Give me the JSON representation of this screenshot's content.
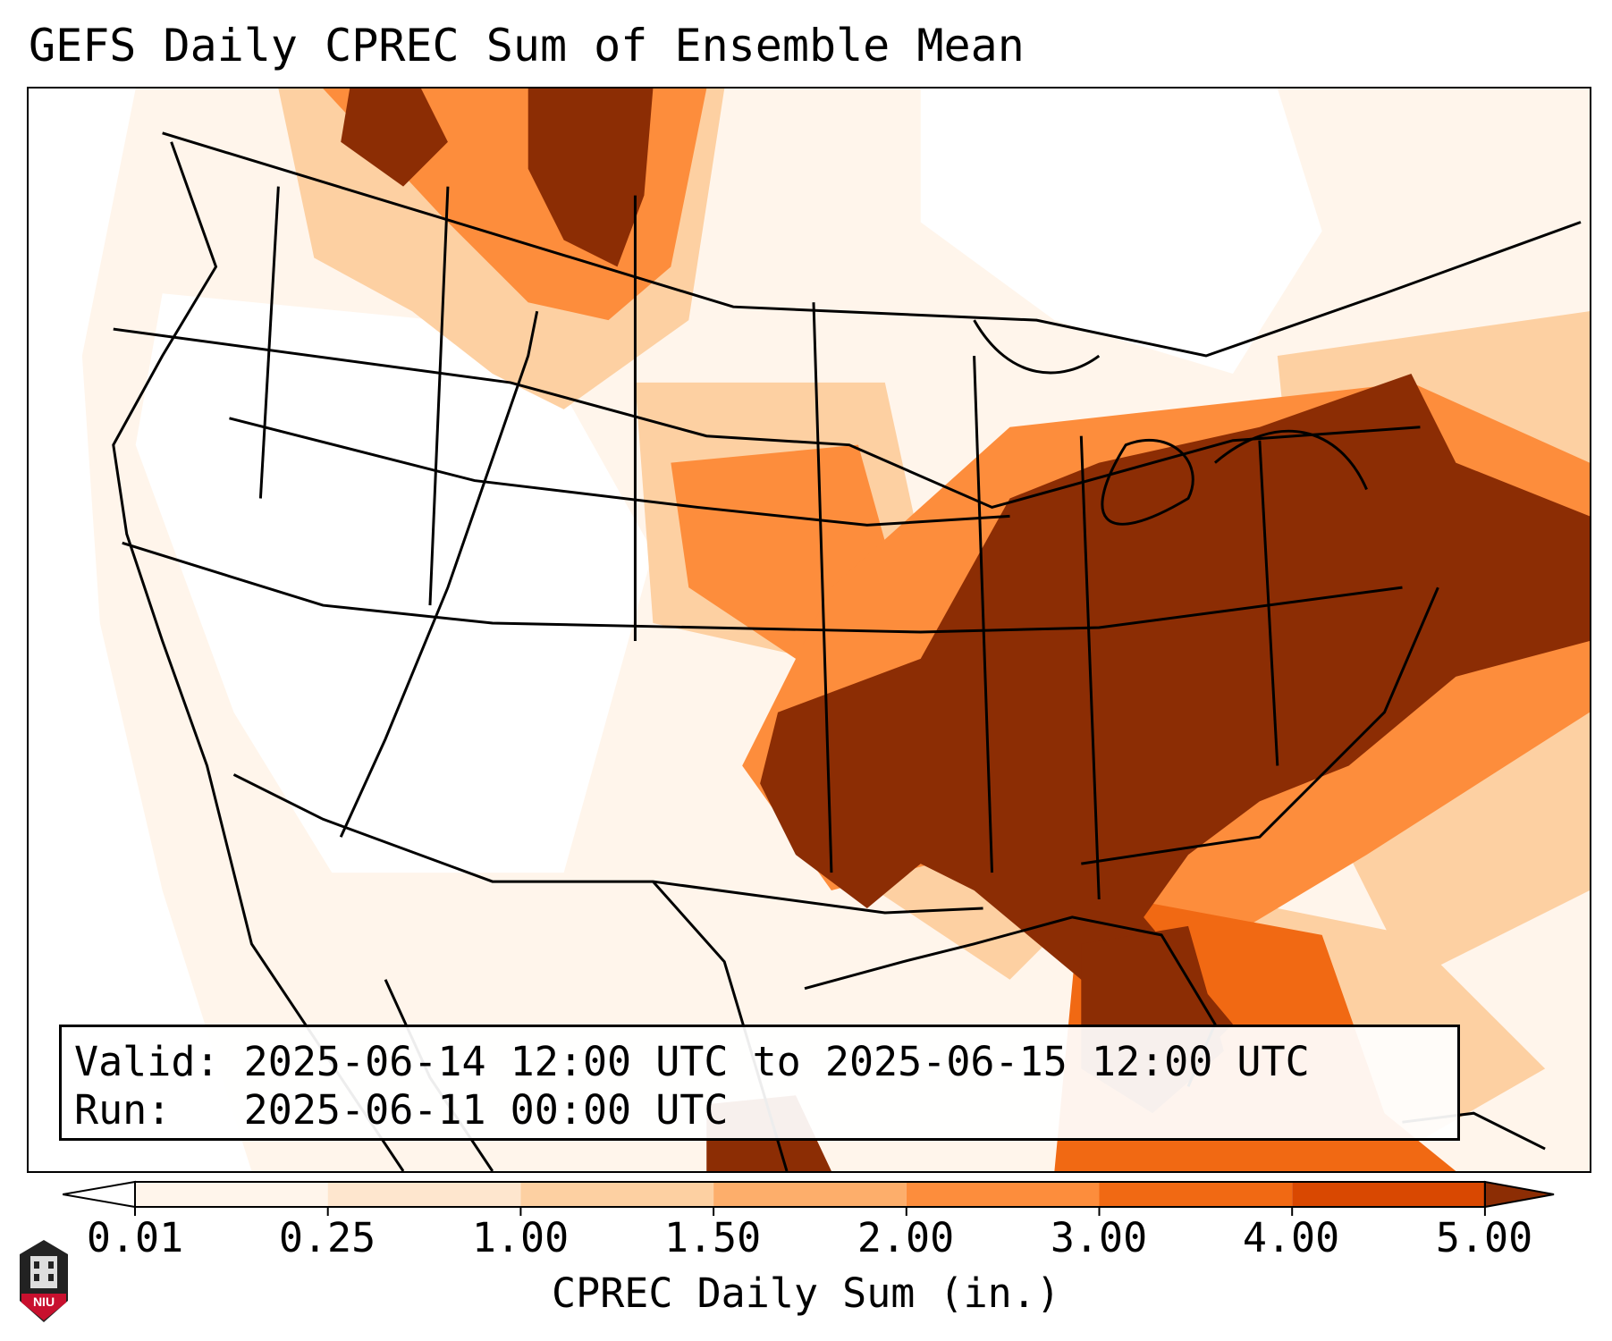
{
  "title": "GEFS Daily CPREC Sum of Ensemble Mean",
  "info": {
    "valid_line": "Valid: 2025-06-14 12:00 UTC to 2025-06-15 12:00 UTC",
    "run_line": "Run:   2025-06-11 00:00 UTC"
  },
  "colorbar": {
    "label": "CPREC Daily Sum (in.)",
    "ticks": [
      "0.01",
      "0.25",
      "1.00",
      "1.50",
      "2.00",
      "3.00",
      "4.00",
      "5.00"
    ],
    "colors": [
      "#fff5eb",
      "#fee6ce",
      "#fdd0a2",
      "#fdae6b",
      "#fd8d3c",
      "#f16913",
      "#d94801",
      "#8c2d04"
    ],
    "under_color": "#ffffff",
    "over_color": "#8c2d04"
  },
  "logo": {
    "text": "NIU"
  }
}
